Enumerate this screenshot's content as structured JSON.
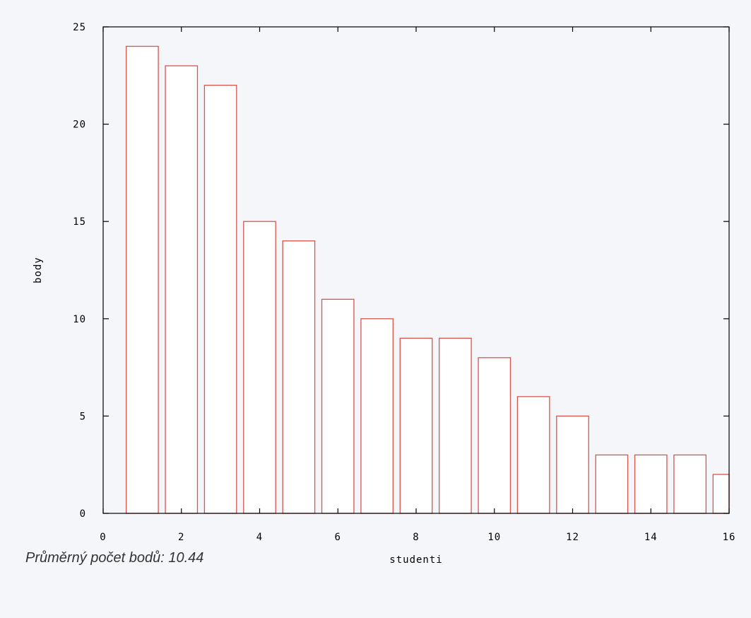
{
  "chart_data": {
    "type": "bar",
    "title": "",
    "xlabel": "studenti",
    "ylabel": "body",
    "x": [
      1,
      2,
      3,
      4,
      5,
      6,
      7,
      8,
      9,
      10,
      11,
      12,
      13,
      14,
      15,
      16
    ],
    "values": [
      24,
      23,
      22,
      15,
      14,
      11,
      10,
      9,
      9,
      8,
      6,
      5,
      3,
      3,
      3,
      2
    ],
    "xlim": [
      0,
      16
    ],
    "ylim": [
      0,
      25
    ],
    "xticks": [
      0,
      2,
      4,
      6,
      8,
      10,
      12,
      14,
      16
    ],
    "yticks": [
      0,
      5,
      10,
      15,
      20,
      25
    ],
    "grid": false,
    "bar_color": "#d9534f",
    "bar_fill": "#ffffff"
  },
  "footer": {
    "average_text": "Průměrný počet bodů: 10.44"
  }
}
